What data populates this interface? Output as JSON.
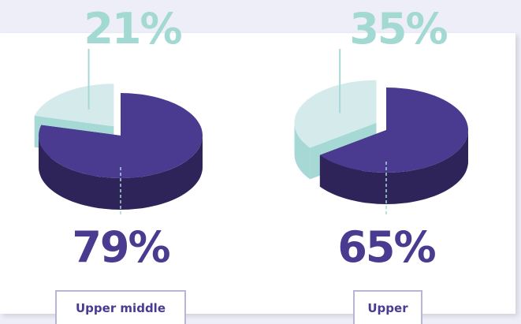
{
  "chart_data": [
    {
      "type": "pie",
      "title": "Upper middle",
      "values": [
        21,
        79
      ],
      "value_labels": [
        "21%",
        "79%"
      ],
      "colors": [
        "#d5ebeb",
        "#4a3a90"
      ]
    },
    {
      "type": "pie",
      "title": "Upper",
      "values": [
        35,
        65
      ],
      "value_labels": [
        "35%",
        "65%"
      ],
      "colors": [
        "#d5ebeb",
        "#4a3a90"
      ]
    }
  ]
}
